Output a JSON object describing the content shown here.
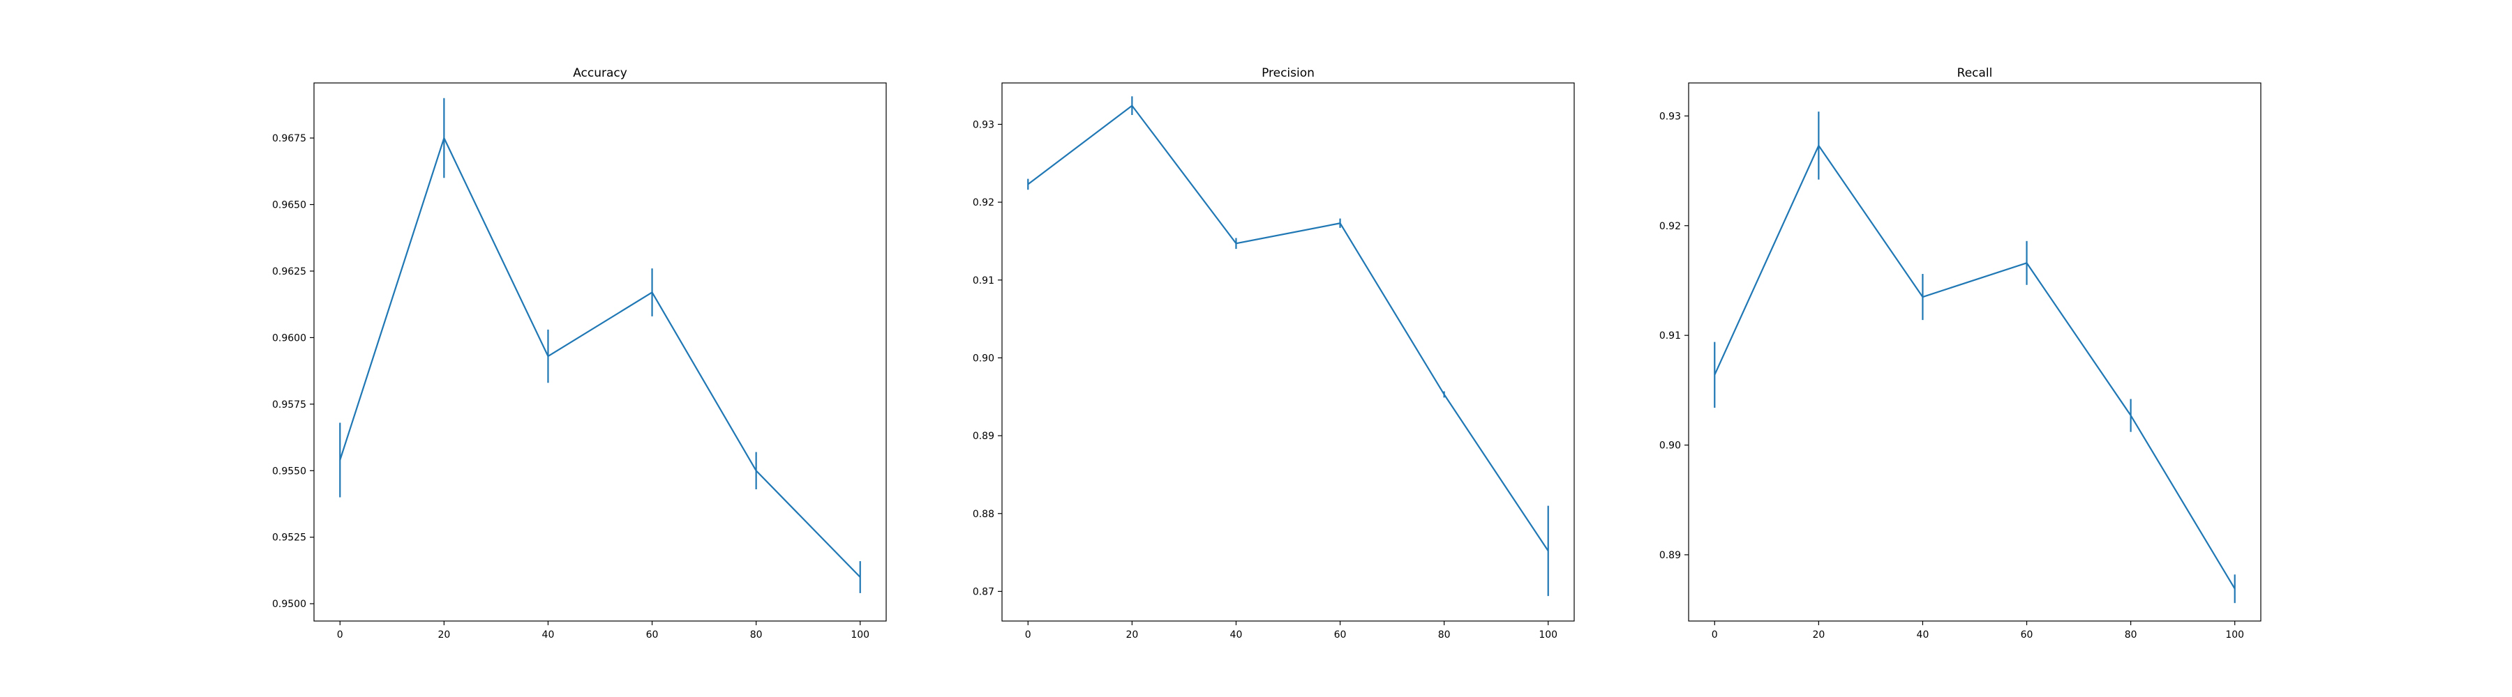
{
  "chart_data": [
    {
      "type": "line",
      "title": "Accuracy",
      "xlabel": "",
      "ylabel": "",
      "x": [
        0,
        20,
        40,
        60,
        80,
        100
      ],
      "series": [
        {
          "values": [
            0.9554,
            0.9675,
            0.9593,
            0.9617,
            0.955,
            0.951
          ],
          "errors": [
            0.0014,
            0.0015,
            0.001,
            0.0009,
            0.0007,
            0.0006
          ]
        }
      ],
      "xlim": [
        -5,
        105
      ],
      "ylim": [
        0.94935,
        0.96957
      ],
      "xticks": [
        0,
        20,
        40,
        60,
        80,
        100
      ],
      "xtick_labels": [
        "0",
        "20",
        "40",
        "60",
        "80",
        "100"
      ],
      "yticks": [
        0.95,
        0.9525,
        0.955,
        0.9575,
        0.96,
        0.9625,
        0.965,
        0.9675
      ],
      "ytick_labels": [
        "0.9500",
        "0.9525",
        "0.9550",
        "0.9575",
        "0.9600",
        "0.9625",
        "0.9650",
        "0.9675"
      ],
      "grid": false,
      "color": "#1f77b4"
    },
    {
      "type": "line",
      "title": "Precision",
      "xlabel": "",
      "ylabel": "",
      "x": [
        0,
        20,
        40,
        60,
        80,
        100
      ],
      "series": [
        {
          "values": [
            0.9223,
            0.9324,
            0.9147,
            0.9173,
            0.8953,
            0.8752
          ],
          "errors": [
            0.0007,
            0.0012,
            0.0007,
            0.0006,
            0.0004,
            0.0058
          ]
        }
      ],
      "xlim": [
        -5,
        105
      ],
      "ylim": [
        0.86619,
        0.93532
      ],
      "xticks": [
        0,
        20,
        40,
        60,
        80,
        100
      ],
      "xtick_labels": [
        "0",
        "20",
        "40",
        "60",
        "80",
        "100"
      ],
      "yticks": [
        0.87,
        0.88,
        0.89,
        0.9,
        0.91,
        0.92,
        0.93
      ],
      "ytick_labels": [
        "0.87",
        "0.88",
        "0.89",
        "0.90",
        "0.91",
        "0.92",
        "0.93"
      ],
      "grid": false,
      "color": "#1f77b4"
    },
    {
      "type": "line",
      "title": "Recall",
      "xlabel": "",
      "ylabel": "",
      "x": [
        0,
        20,
        40,
        60,
        80,
        100
      ],
      "series": [
        {
          "values": [
            0.9064,
            0.9273,
            0.9135,
            0.9166,
            0.9027,
            0.8869
          ],
          "errors": [
            0.003,
            0.0031,
            0.0021,
            0.002,
            0.0015,
            0.0013
          ]
        }
      ],
      "xlim": [
        -5,
        105
      ],
      "ylim": [
        0.88396,
        0.93301
      ],
      "xticks": [
        0,
        20,
        40,
        60,
        80,
        100
      ],
      "xtick_labels": [
        "0",
        "20",
        "40",
        "60",
        "80",
        "100"
      ],
      "yticks": [
        0.89,
        0.9,
        0.91,
        0.92,
        0.93
      ],
      "ytick_labels": [
        "0.89",
        "0.90",
        "0.91",
        "0.92",
        "0.93"
      ],
      "grid": false,
      "color": "#1f77b4"
    }
  ]
}
